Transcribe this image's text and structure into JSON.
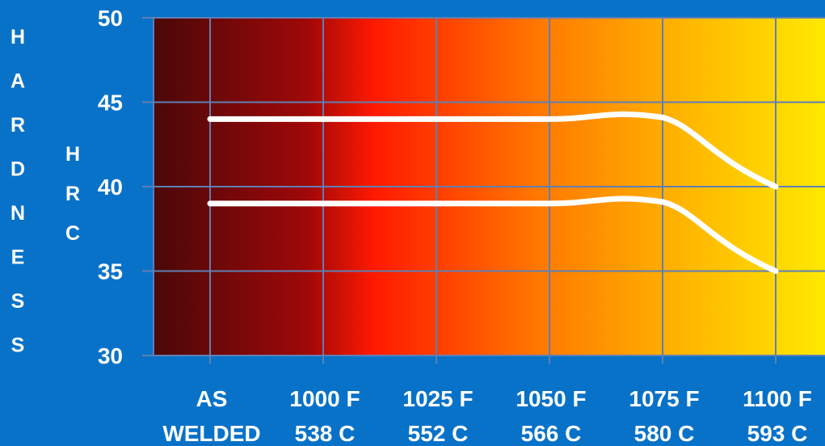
{
  "chart_data": {
    "type": "line",
    "title": "",
    "ylabel_outer": "HARDNESS",
    "ylabel_inner": "HRC",
    "ylim": [
      30,
      50
    ],
    "yticks": [
      30,
      35,
      40,
      45,
      50
    ],
    "categories": [
      {
        "top": "AS",
        "bottom": "WELDED"
      },
      {
        "top": "1000 F",
        "bottom": "538 C"
      },
      {
        "top": "1025 F",
        "bottom": "552 C"
      },
      {
        "top": "1050 F",
        "bottom": "566 C"
      },
      {
        "top": "1075 F",
        "bottom": "580 C"
      },
      {
        "top": "1100 F",
        "bottom": "593 C"
      }
    ],
    "series": [
      {
        "values": [
          44,
          44,
          44,
          44,
          44,
          40
        ]
      },
      {
        "values": [
          39,
          39,
          39,
          39,
          39,
          35
        ]
      }
    ],
    "grid": true,
    "colors": {
      "background": "#0872c8",
      "gradient": [
        "#4a0808",
        "#a00808",
        "#ff1a00",
        "#ff7a00",
        "#ffb800",
        "#ffe800"
      ],
      "gridline": "#5f7fb4",
      "line": "#ffffff",
      "text": "#ffffff"
    }
  }
}
